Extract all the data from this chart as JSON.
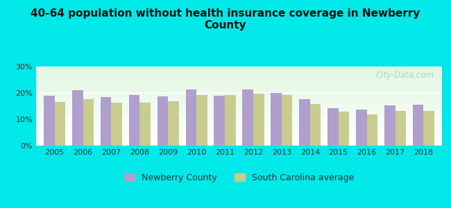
{
  "title": "40-64 population without health insurance coverage in Newberry\nCounty",
  "years": [
    2005,
    2006,
    2007,
    2008,
    2009,
    2010,
    2011,
    2012,
    2013,
    2014,
    2015,
    2016,
    2017,
    2018
  ],
  "newberry": [
    19.0,
    21.0,
    18.3,
    19.3,
    18.7,
    21.3,
    19.0,
    21.4,
    20.0,
    17.7,
    14.3,
    13.7,
    15.3,
    15.4
  ],
  "sc_avg": [
    16.7,
    17.7,
    16.2,
    16.3,
    16.9,
    19.2,
    19.1,
    19.7,
    19.2,
    15.7,
    12.8,
    11.8,
    13.1,
    13.1
  ],
  "bar_color_newberry": "#b09fcc",
  "bar_color_sc": "#c8cc8f",
  "background_outer": "#00e8e8",
  "ylim": [
    0,
    30
  ],
  "yticks": [
    0,
    10,
    20,
    30
  ],
  "legend_newberry": "Newberry County",
  "legend_sc": "South Carolina average",
  "watermark": "City-Data.com",
  "bar_width": 0.38,
  "title_fontsize": 11,
  "tick_fontsize": 8,
  "legend_fontsize": 9
}
